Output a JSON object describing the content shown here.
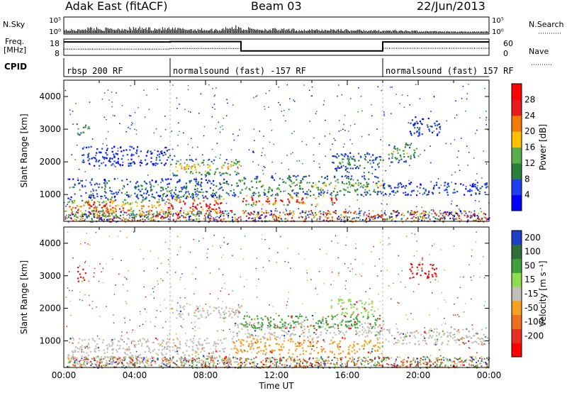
{
  "header": {
    "title": "Adak East (fitACF)",
    "beam": "Beam 03",
    "date": "22/Jun/2013"
  },
  "labels": {
    "nsky": "N.Sky",
    "freq_line1": "Freq.",
    "freq_line2": "[MHz]",
    "cpid": "CPID",
    "nsearch": "N.Search",
    "nave": "Nave"
  },
  "chart_data": [
    {
      "type": "bar",
      "name": "noise",
      "yticks_left": [
        "10^5",
        "10^0"
      ],
      "yticks_right": [
        "10^5",
        "10^0"
      ],
      "ylim": [
        0,
        5
      ],
      "x": [
        0,
        1,
        2,
        3,
        4,
        5,
        6,
        7,
        8,
        9,
        10,
        11,
        12,
        13,
        14,
        15,
        16,
        17,
        18,
        19,
        20,
        21,
        22,
        23
      ],
      "values": [
        0.8,
        1.3,
        1.1,
        1.2,
        1.3,
        1.2,
        1.1,
        1.0,
        0.9,
        1.6,
        1.2,
        1.0,
        0.9,
        0.8,
        0.8,
        0.9,
        0.7,
        0.6,
        0.6,
        0.5,
        0.4,
        0.4,
        0.3,
        0.3
      ]
    },
    {
      "type": "line",
      "name": "frequency",
      "yticks_left": [
        "18",
        "8"
      ],
      "yticks_right": [
        "60",
        "0"
      ],
      "series": [
        {
          "segments": [
            [
              0,
              6,
              11.8
            ],
            [
              6,
              10,
              12.2
            ],
            [
              10,
              18,
              10.6
            ],
            [
              18,
              24,
              12.3
            ]
          ]
        },
        {
          "segments": [
            [
              0,
              6,
              16.2
            ],
            [
              6,
              10,
              16.4
            ],
            [
              10,
              18,
              10.7
            ],
            [
              18,
              24,
              16.2
            ]
          ]
        }
      ]
    },
    {
      "type": "table",
      "name": "cpid",
      "entries": [
        {
          "start": 0,
          "label": "rbsp 200 RF"
        },
        {
          "start": 6,
          "label": "normalsound (fast) -157 RF"
        },
        {
          "start": 18,
          "label": "normalsound (fast) 157 RF"
        }
      ]
    },
    {
      "type": "heatmap",
      "name": "power",
      "ylabel": "Slant Range [km]",
      "yticks": [
        "1000",
        "2000",
        "3000",
        "4000"
      ],
      "ylim": [
        180,
        4500
      ],
      "xlim": [
        0,
        24
      ],
      "colorbar": {
        "label": "Power [dB]",
        "ticks": [
          "4",
          "8",
          "12",
          "16",
          "20",
          "24",
          "28"
        ],
        "colors": [
          "#0000ff",
          "#203ff0",
          "#2a7f3a",
          "#58b04d",
          "#ffc000",
          "#f57c00",
          "#e81a1a",
          "#ff0000"
        ]
      },
      "bands": [
        {
          "t0": 0.2,
          "t1": 6.0,
          "r0": 300,
          "r1": 900,
          "level": 5
        },
        {
          "t0": 1.2,
          "t1": 2.8,
          "r0": 500,
          "r1": 900,
          "level": 7
        },
        {
          "t0": 5.8,
          "t1": 9.0,
          "r0": 400,
          "r1": 1000,
          "level": 7
        },
        {
          "t0": 10.0,
          "t1": 15.5,
          "r0": 700,
          "r1": 1000,
          "level": 7
        },
        {
          "t0": 0.2,
          "t1": 9.8,
          "r0": 900,
          "r1": 1500,
          "level": 2
        },
        {
          "t0": 9.8,
          "t1": 18.0,
          "r0": 1000,
          "r1": 1600,
          "level": 3
        },
        {
          "t0": 18.0,
          "t1": 24.0,
          "r0": 1000,
          "r1": 1400,
          "level": 1
        },
        {
          "t0": 6.0,
          "t1": 10.0,
          "r0": 1600,
          "r1": 2100,
          "level": 4
        },
        {
          "t0": 15.0,
          "t1": 18.0,
          "r0": 1700,
          "r1": 2300,
          "level": 2
        },
        {
          "t0": 1.0,
          "t1": 6.0,
          "r0": 1900,
          "r1": 2500,
          "level": 1
        },
        {
          "t0": 18.3,
          "t1": 20.0,
          "r0": 2000,
          "r1": 2600,
          "level": 3
        },
        {
          "t0": 0.7,
          "t1": 1.4,
          "r0": 2800,
          "r1": 3200,
          "level": 3
        },
        {
          "t0": 19.5,
          "t1": 21.2,
          "r0": 2800,
          "r1": 3400,
          "level": 1
        }
      ]
    },
    {
      "type": "heatmap",
      "name": "velocity",
      "ylabel": "Slant Range [km]",
      "yticks": [
        "1000",
        "2000",
        "3000",
        "4000"
      ],
      "ylim": [
        180,
        4500
      ],
      "xlim": [
        0,
        24
      ],
      "xticks": [
        "00:00",
        "04:00",
        "08:00",
        "12:00",
        "16:00",
        "20:00",
        "00:00"
      ],
      "xlabel": "Time UT",
      "colorbar": {
        "label": "Velocity [m s^-1]",
        "ticks": [
          "200",
          "100",
          "50",
          "15",
          "-15",
          "-50",
          "-100",
          "-200"
        ],
        "colors": [
          "#1f3fc8",
          "#2e6f3a",
          "#3fa03a",
          "#8fdc4f",
          "#c0c0b8",
          "#f7a020",
          "#f07020",
          "#e83020",
          "#ff0000"
        ]
      },
      "bands": [
        {
          "t0": 0.2,
          "t1": 9.5,
          "r0": 300,
          "r1": 1100,
          "level": "ground"
        },
        {
          "t0": 9.5,
          "t1": 18.0,
          "r0": 600,
          "r1": 1100,
          "level": "-50"
        },
        {
          "t0": 9.5,
          "t1": 18.0,
          "r0": 1100,
          "r1": 1600,
          "level": "ground"
        },
        {
          "t0": 18.0,
          "t1": 24.0,
          "r0": 900,
          "r1": 1400,
          "level": "ground"
        },
        {
          "t0": 6.0,
          "t1": 10.0,
          "r0": 1700,
          "r1": 2100,
          "level": "ground"
        },
        {
          "t0": 10.0,
          "t1": 18.0,
          "r0": 1400,
          "r1": 1800,
          "level": "50"
        },
        {
          "t0": 15.0,
          "t1": 17.5,
          "r0": 1800,
          "r1": 2300,
          "level": "15"
        },
        {
          "t0": 0.7,
          "t1": 1.2,
          "r0": 2850,
          "r1": 3300,
          "level": "-200"
        },
        {
          "t0": 19.5,
          "t1": 21.0,
          "r0": 2900,
          "r1": 3400,
          "level": "-200"
        }
      ]
    }
  ]
}
